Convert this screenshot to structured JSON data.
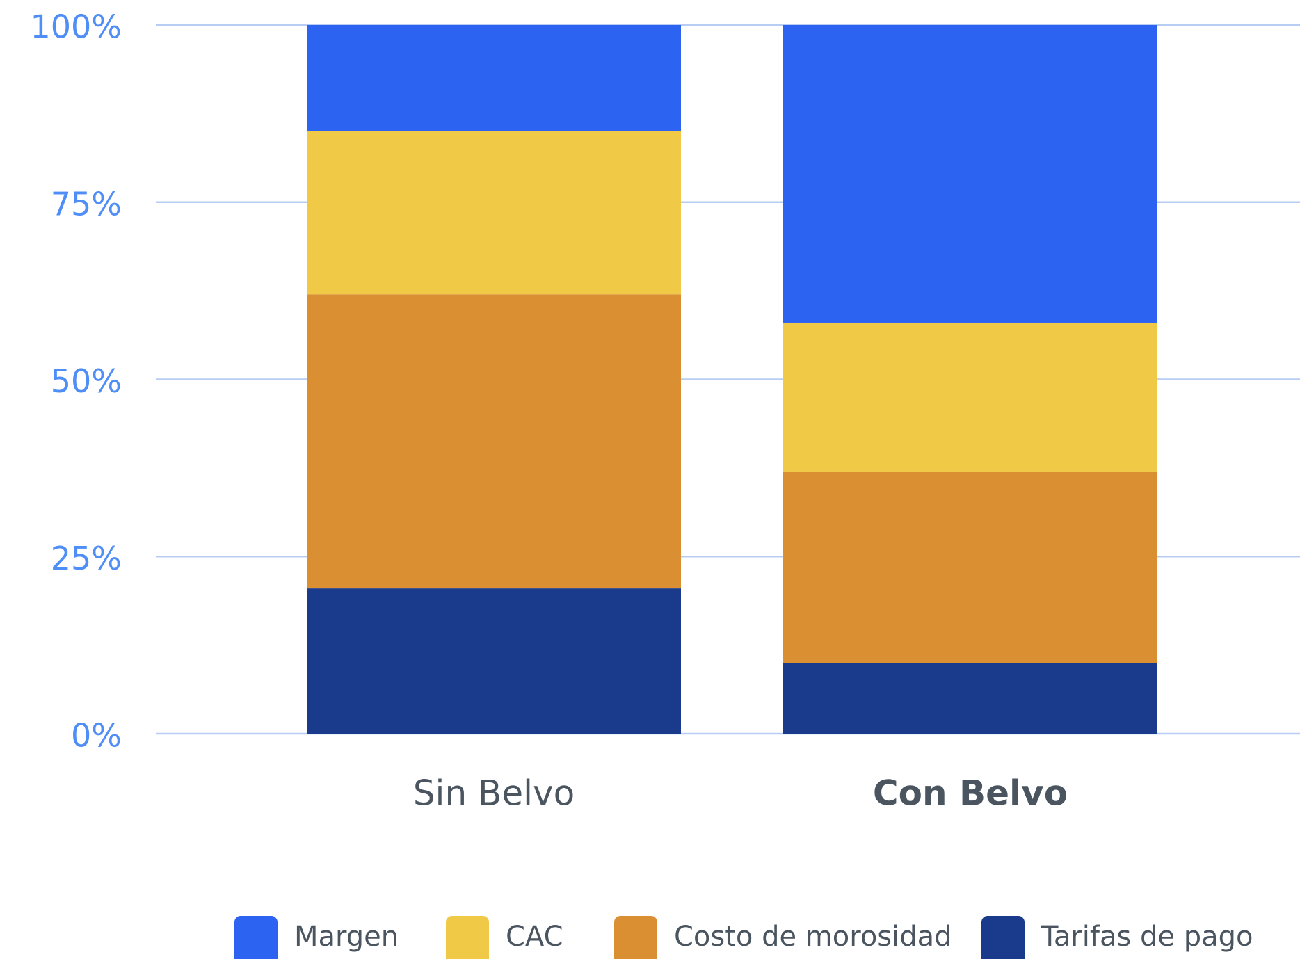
{
  "chart_data": {
    "type": "stacked_bar",
    "categories": [
      "Sin Belvo",
      "Con Belvo"
    ],
    "series": [
      {
        "name": "Tarifas de pago",
        "color": "#1a3a8c",
        "values": [
          20.5,
          10
        ]
      },
      {
        "name": "Costo de morosidad",
        "color": "#db8f33",
        "values": [
          41.5,
          27
        ]
      },
      {
        "name": "CAC",
        "color": "#f0ca46",
        "values": [
          23,
          21
        ]
      },
      {
        "name": "Margen",
        "color": "#2c63f1",
        "values": [
          15,
          42
        ]
      }
    ],
    "legend_order": [
      "Margen",
      "CAC",
      "Costo de morosidad",
      "Tarifas de pago"
    ],
    "ylim": [
      0,
      100
    ],
    "yticks": [
      {
        "value": 0,
        "label": "0%"
      },
      {
        "value": 25,
        "label": "25%"
      },
      {
        "value": 50,
        "label": "50%"
      },
      {
        "value": 75,
        "label": "75%"
      },
      {
        "value": 100,
        "label": "100%"
      }
    ],
    "grid": true,
    "legend": "bottom"
  }
}
